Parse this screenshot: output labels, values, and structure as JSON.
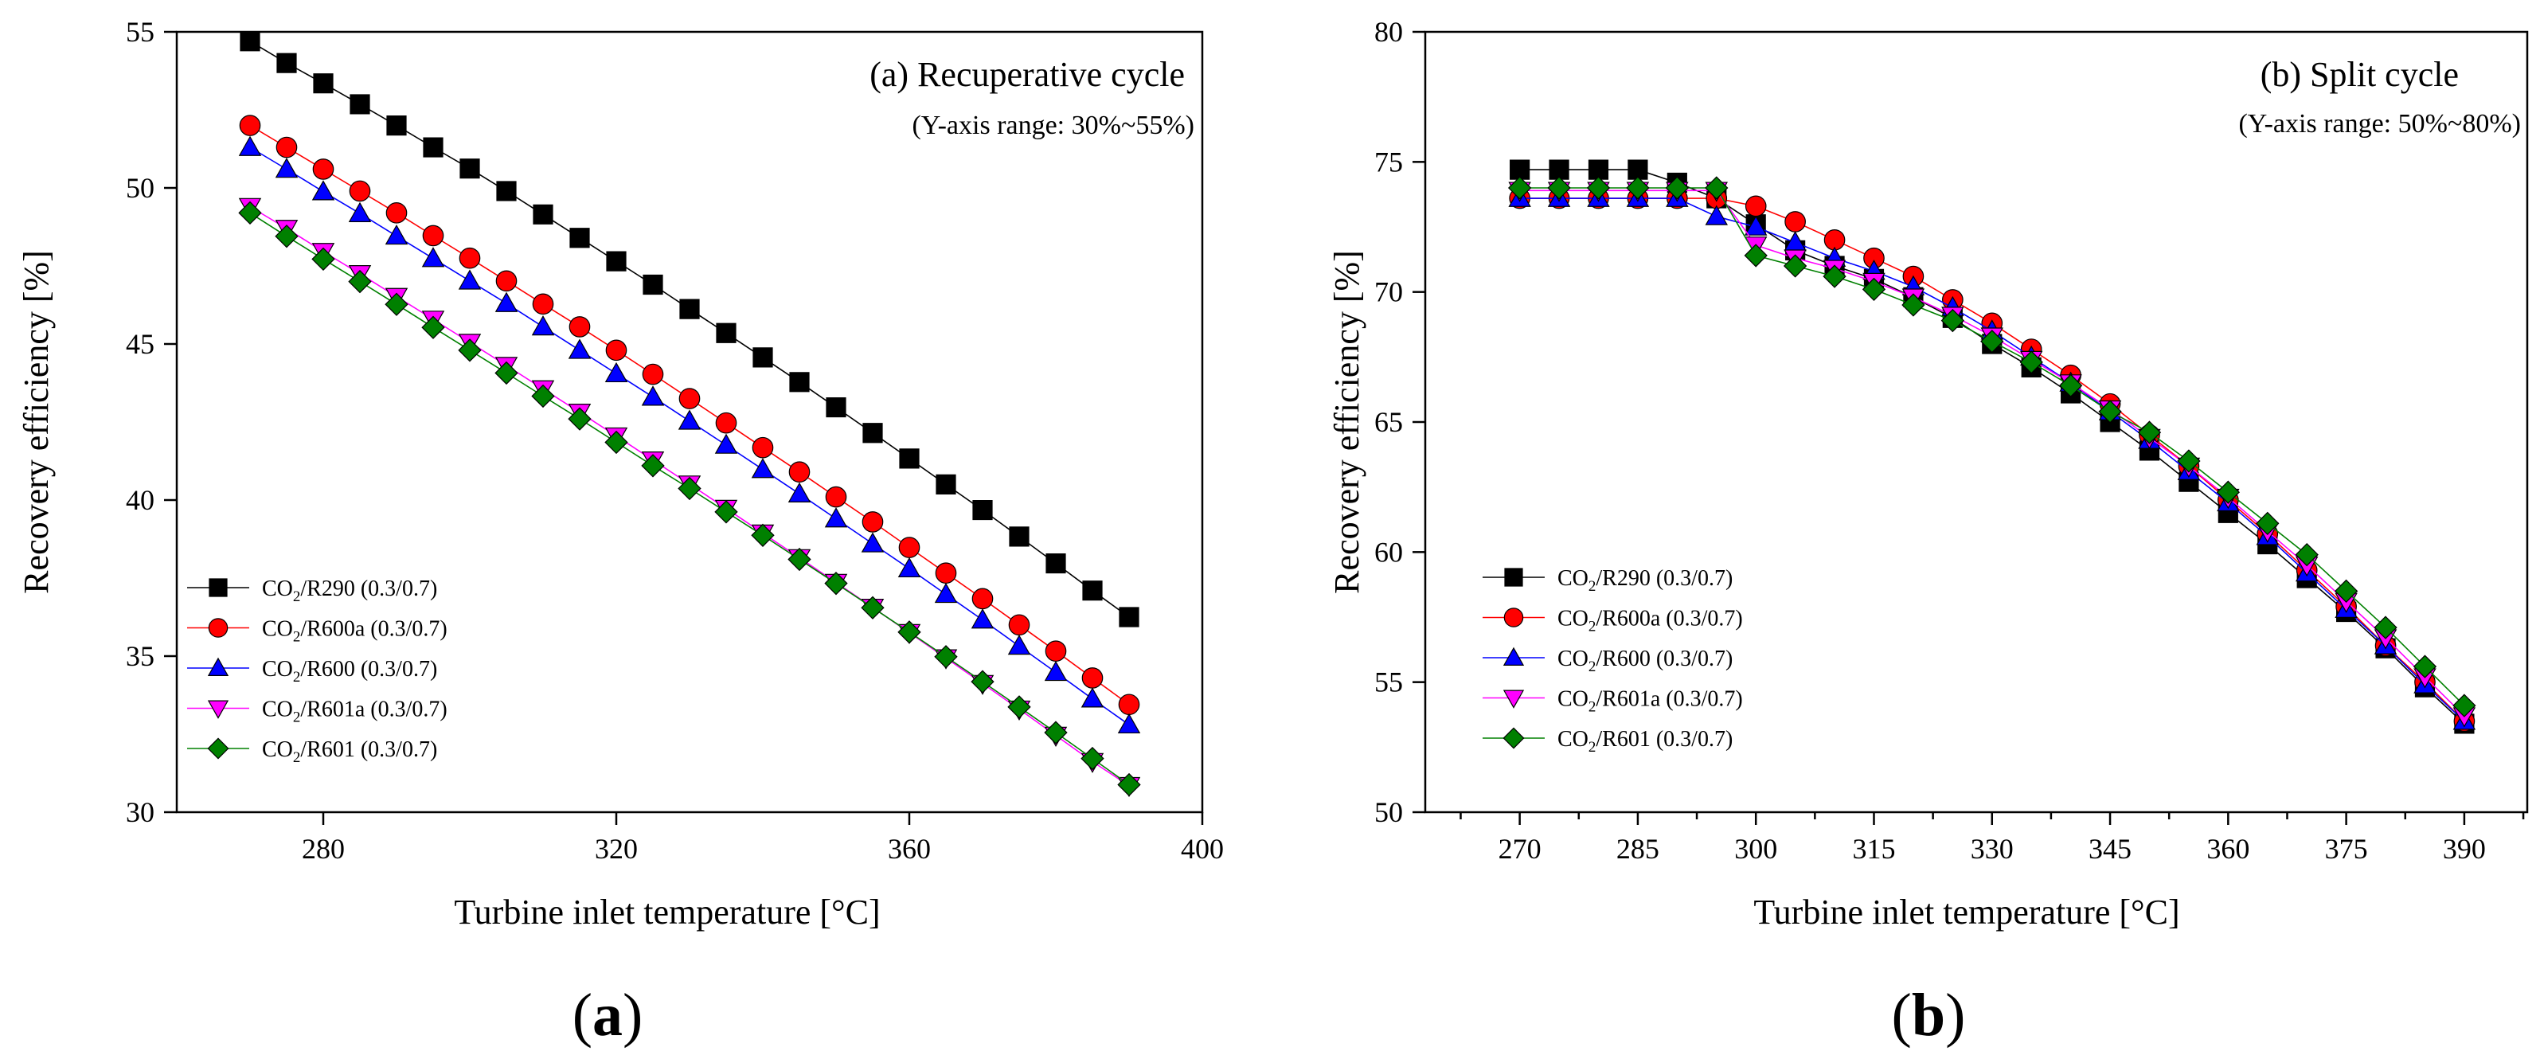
{
  "chart_data": [
    {
      "type": "line",
      "panel_label": "a",
      "title": "(a) Recuperative cycle",
      "subtitle": "(Y-axis range: 30%~55%)",
      "xlabel": "Turbine inlet temperature [°C]",
      "ylabel": "Recovery efficiency [%]",
      "xlim": [
        260,
        400
      ],
      "ylim": [
        30,
        55
      ],
      "xticks": [
        280,
        320,
        360,
        400
      ],
      "yticks": [
        30,
        35,
        40,
        45,
        50,
        55
      ],
      "x": [
        270,
        275,
        280,
        285,
        290,
        295,
        300,
        305,
        310,
        315,
        320,
        325,
        330,
        335,
        340,
        345,
        350,
        355,
        360,
        365,
        370,
        375,
        380,
        385,
        390
      ],
      "legend_position": "lower-left",
      "series": [
        {
          "name": "R290 (0.3/0.7)",
          "color": "#000000",
          "marker": "square",
          "values": [
            54.7,
            54.0,
            53.35,
            52.68,
            52.0,
            51.3,
            50.62,
            49.9,
            49.15,
            48.4,
            47.65,
            46.9,
            46.12,
            45.35,
            44.57,
            43.78,
            42.97,
            42.15,
            41.33,
            40.5,
            39.68,
            38.83,
            37.97,
            37.1,
            36.25
          ]
        },
        {
          "name": "R600a (0.3/0.7)",
          "color": "#ff0000",
          "marker": "circle",
          "values": [
            52.0,
            51.3,
            50.6,
            49.9,
            49.2,
            48.47,
            47.75,
            47.02,
            46.28,
            45.55,
            44.8,
            44.03,
            43.25,
            42.47,
            41.68,
            40.9,
            40.1,
            39.3,
            38.48,
            37.66,
            36.84,
            36.0,
            35.16,
            34.3,
            33.45
          ]
        },
        {
          "name": "R600 (0.3/0.7)",
          "color": "#0000ff",
          "marker": "triangle-up",
          "values": [
            51.3,
            50.6,
            49.88,
            49.18,
            48.46,
            47.74,
            47.02,
            46.3,
            45.55,
            44.8,
            44.05,
            43.3,
            42.53,
            41.76,
            40.98,
            40.2,
            39.4,
            38.6,
            37.8,
            36.98,
            36.16,
            35.32,
            34.48,
            33.63,
            32.8
          ]
        },
        {
          "name": "R601a (0.3/0.7)",
          "color": "#ff00ff",
          "marker": "triangle-down",
          "values": [
            49.4,
            48.7,
            47.96,
            47.25,
            46.52,
            45.79,
            45.05,
            44.31,
            43.56,
            42.81,
            42.05,
            41.28,
            40.51,
            39.73,
            38.94,
            38.15,
            37.36,
            36.56,
            35.75,
            34.94,
            34.12,
            33.3,
            32.46,
            31.62,
            30.85
          ]
        },
        {
          "name": "R601 (0.3/0.7)",
          "color": "#008000",
          "marker": "diamond",
          "values": [
            49.2,
            48.45,
            47.72,
            47.0,
            46.27,
            45.53,
            44.8,
            44.07,
            43.33,
            42.6,
            41.85,
            41.1,
            40.37,
            39.62,
            38.87,
            38.1,
            37.33,
            36.55,
            35.77,
            34.98,
            34.18,
            33.37,
            32.55,
            31.72,
            30.88
          ]
        }
      ]
    },
    {
      "type": "line",
      "panel_label": "b",
      "title": "(b) Split cycle",
      "subtitle": "(Y-axis range: 50%~80%)",
      "xlabel": "Turbine inlet temperature [°C]",
      "ylabel": "Recovery efficiency [%]",
      "xlim": [
        258,
        398
      ],
      "ylim": [
        50,
        80
      ],
      "xticks": [
        270,
        285,
        300,
        315,
        330,
        345,
        360,
        375,
        390
      ],
      "yticks": [
        50,
        55,
        60,
        65,
        70,
        75,
        80
      ],
      "x": [
        270,
        275,
        280,
        285,
        290,
        295,
        300,
        305,
        310,
        315,
        320,
        325,
        330,
        335,
        340,
        345,
        350,
        355,
        360,
        365,
        370,
        375,
        380,
        385,
        390
      ],
      "legend_position": "lower-left",
      "series": [
        {
          "name": "R290 (0.3/0.7)",
          "color": "#000000",
          "marker": "square",
          "values": [
            74.7,
            74.7,
            74.7,
            74.7,
            74.2,
            73.6,
            72.6,
            71.6,
            71.0,
            70.5,
            69.8,
            69.0,
            68.0,
            67.1,
            66.1,
            65.0,
            63.9,
            62.7,
            61.5,
            60.3,
            59.0,
            57.7,
            56.3,
            54.8,
            53.4
          ]
        },
        {
          "name": "R600a (0.3/0.7)",
          "color": "#ff0000",
          "marker": "circle",
          "values": [
            73.6,
            73.6,
            73.6,
            73.6,
            73.6,
            73.6,
            73.3,
            72.7,
            72.0,
            71.3,
            70.6,
            69.7,
            68.8,
            67.8,
            66.8,
            65.7,
            64.5,
            63.3,
            62.0,
            60.7,
            59.3,
            57.9,
            56.4,
            55.0,
            53.5
          ]
        },
        {
          "name": "R600 (0.3/0.7)",
          "color": "#0000ff",
          "marker": "triangle-up",
          "values": [
            73.6,
            73.6,
            73.6,
            73.6,
            73.6,
            72.9,
            72.5,
            71.9,
            71.3,
            70.8,
            70.2,
            69.4,
            68.5,
            67.5,
            66.5,
            65.4,
            64.3,
            63.1,
            61.9,
            60.6,
            59.2,
            57.8,
            56.4,
            54.9,
            53.5
          ]
        },
        {
          "name": "R601a (0.3/0.7)",
          "color": "#ff00ff",
          "marker": "triangle-down",
          "values": [
            73.9,
            73.9,
            73.9,
            73.9,
            73.9,
            73.9,
            71.8,
            71.3,
            70.9,
            70.4,
            69.8,
            69.1,
            68.3,
            67.4,
            66.5,
            65.5,
            64.4,
            63.3,
            62.1,
            60.8,
            59.5,
            58.1,
            56.7,
            55.2,
            53.7
          ]
        },
        {
          "name": "R601 (0.3/0.7)",
          "color": "#008000",
          "marker": "diamond",
          "values": [
            74.0,
            74.0,
            74.0,
            74.0,
            74.0,
            74.0,
            71.4,
            71.0,
            70.6,
            70.1,
            69.5,
            68.9,
            68.1,
            67.3,
            66.4,
            65.4,
            64.6,
            63.5,
            62.3,
            61.1,
            59.9,
            58.5,
            57.1,
            55.6,
            54.1
          ]
        }
      ]
    }
  ]
}
